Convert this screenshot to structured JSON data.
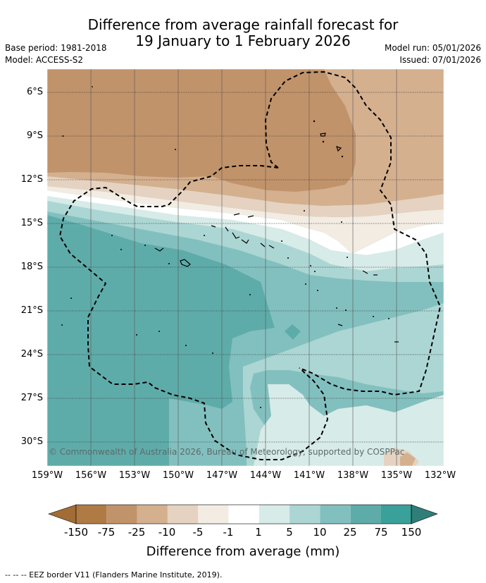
{
  "title_line1": "Difference from average rainfall forecast for",
  "title_line2": "19 January to 1 February 2026",
  "base_period": "Base period: 1981-2018",
  "model": "Model: ACCESS-S2",
  "model_run": "Model run: 05/01/2026",
  "issued": "Issued: 07/01/2026",
  "lat_labels": [
    "6°S",
    "9°S",
    "12°S",
    "15°S",
    "18°S",
    "21°S",
    "24°S",
    "27°S",
    "30°S"
  ],
  "lon_labels": [
    "159°W",
    "156°W",
    "153°W",
    "150°W",
    "147°W",
    "144°W",
    "141°W",
    "138°W",
    "135°W",
    "132°W"
  ],
  "copyright": "© Commonwealth of Australia 2026, Bureau of Meteorology, supported by COSPPac",
  "colorbar": {
    "labels": [
      "-150",
      "-75",
      "-25",
      "-10",
      "-5",
      "-1",
      "1",
      "5",
      "10",
      "25",
      "75",
      "150"
    ],
    "colors": [
      "#a26c35",
      "#b07a45",
      "#c1936a",
      "#d4b08f",
      "#e6d2c0",
      "#f2ece3",
      "#ffffff",
      "#d7ebe8",
      "#acd6d3",
      "#82c0bf",
      "#5eacaa",
      "#39a09a",
      "#2f7e78"
    ],
    "title": "Difference from average (mm)"
  },
  "footnote": "--  --  -- EEZ border V11 (Flanders Marine Institute, 2019)."
}
